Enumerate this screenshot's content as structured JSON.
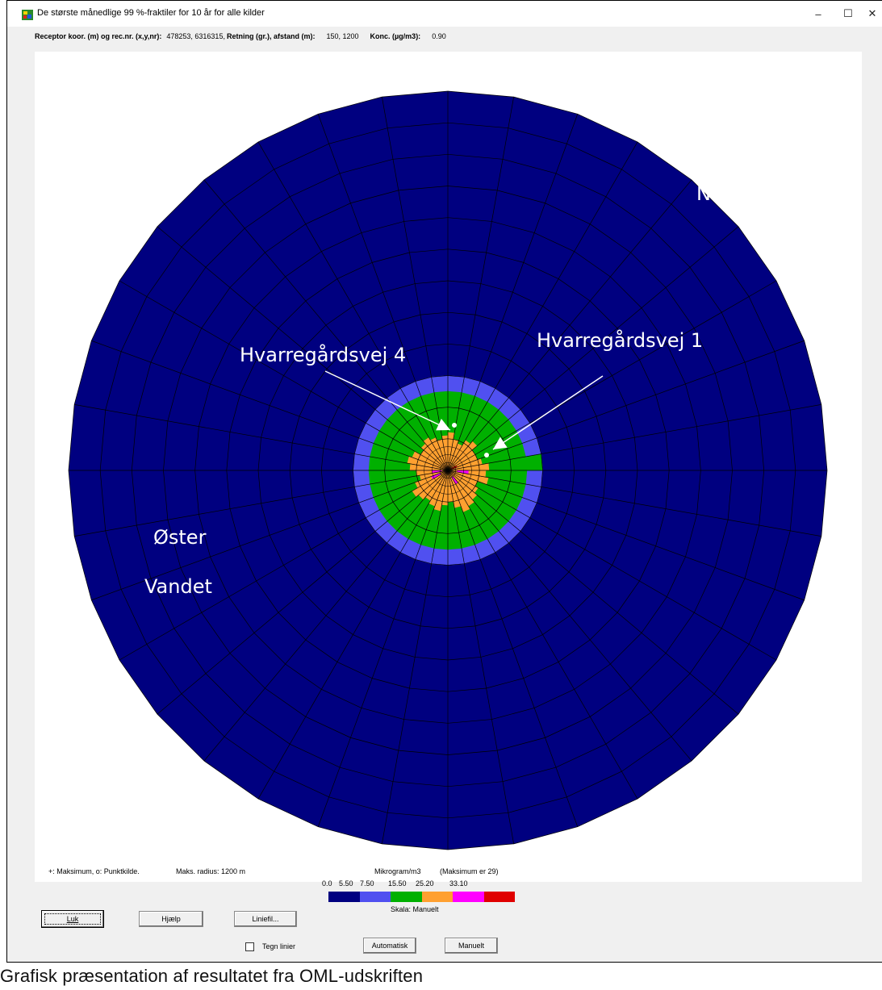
{
  "window": {
    "title": "De største månedlige 99 %-fraktiler for 10 år for alle kilder",
    "minimize": "–",
    "maximize": "☐",
    "close": "✕"
  },
  "info": {
    "receptor_label": "Receptor koor. (m) og rec.nr. (x,y,nr):",
    "receptor_value": "478253, 6316315,",
    "direction_label": "Retning (gr.), afstand (m):",
    "direction_value": "150, 1200",
    "conc_label": "Konc. (µg/m3):",
    "conc_value": "0.90"
  },
  "map_labels": {
    "nors": "Nors",
    "hv4": "Hvarregårdsvej 4",
    "hv1": "Hvarregårdsvej 1",
    "oster": "Øster",
    "vandet": "Vandet"
  },
  "colors": {
    "dark_blue": "#000080",
    "light_blue": "#5050f0",
    "green": "#00b000",
    "orange": "#ffa030",
    "magenta": "#ff00ff",
    "red": "#e00000"
  },
  "footer": {
    "legend_note": "+: Maksimum,  o: Punktkilde.",
    "max_radius": "Maks. radius:  1200 m",
    "units": "Mikrogram/m3",
    "maximum": "(Maksimum er  29)",
    "scale_ticks": [
      "0.0",
      "5.50",
      "7.50",
      "15.50",
      "25.20",
      "33.10"
    ],
    "scale_label": "Skala:  Manuelt",
    "btn_luk": "Luk",
    "btn_hjaelp": "Hjælp",
    "btn_liniefil": "Liniefil...",
    "checkbox_label": "Tegn linier",
    "btn_automatisk": "Automatisk",
    "btn_manuelt": "Manuelt"
  },
  "caption": "Grafisk præsentation af resultatet fra OML-udskriften"
}
